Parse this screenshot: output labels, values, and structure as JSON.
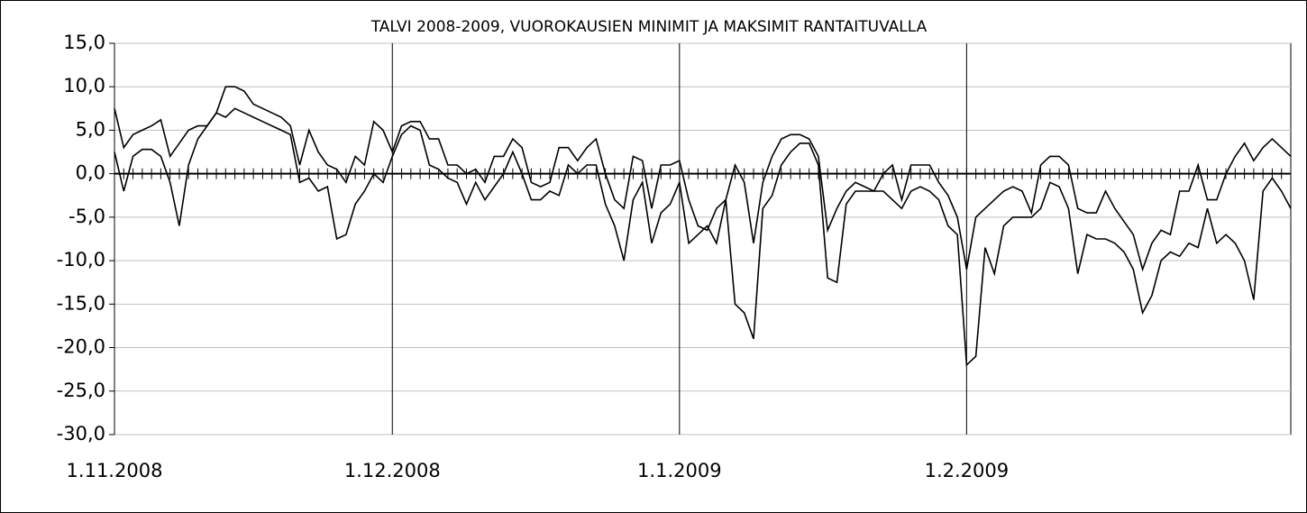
{
  "chart_data": {
    "type": "line",
    "title": "TALVI 2008-2009, VUOROKAUSIEN MINIMIT JA MAKSIMIT RANTAITUVALLA",
    "xlim": [
      0,
      127
    ],
    "xticks": [
      {
        "value": 0,
        "label": "1.11.2008"
      },
      {
        "value": 30,
        "label": "1.12.2008"
      },
      {
        "value": 61,
        "label": "1.1.2009"
      },
      {
        "value": 92,
        "label": "1.2.2009"
      }
    ],
    "ylim": [
      -30,
      15
    ],
    "yticks": [
      {
        "value": 15,
        "label": "15,0"
      },
      {
        "value": 10,
        "label": "10,0"
      },
      {
        "value": 5,
        "label": "5,0"
      },
      {
        "value": 0,
        "label": "0,0"
      },
      {
        "value": -5,
        "label": "-5,0"
      },
      {
        "value": -10,
        "label": "-10,0"
      },
      {
        "value": -15,
        "label": "-15,0"
      },
      {
        "value": -20,
        "label": "-20,0"
      },
      {
        "value": -25,
        "label": "-25,0"
      },
      {
        "value": -30,
        "label": "-30,0"
      }
    ],
    "grid": true,
    "series": [
      {
        "color": "#000000",
        "values": [
          7.5,
          3,
          4.5,
          5,
          5.5,
          6.2,
          2,
          3.5,
          5,
          5.5,
          5.5,
          7,
          10,
          10,
          9.5,
          8,
          7.5,
          7,
          6.5,
          5.5,
          1,
          5,
          2.5,
          1,
          0.5,
          -1,
          2,
          1,
          6,
          5,
          2.5,
          5.5,
          6,
          6,
          4,
          4,
          1,
          1,
          0,
          0.5,
          -1,
          2,
          2,
          4,
          3,
          -1,
          -1.5,
          -1,
          3,
          3,
          1.5,
          3,
          4,
          0,
          -3,
          -4,
          2,
          1.5,
          -4,
          1,
          1,
          1.5,
          -3,
          -6,
          -6.5,
          -4,
          -3,
          1,
          -1,
          -8,
          -1,
          2,
          4,
          4.5,
          4.5,
          4,
          2,
          -6.5,
          -4,
          -2,
          -1,
          -1.5,
          -2,
          0,
          1,
          -3,
          1,
          1,
          1,
          -1,
          -2.5,
          -5,
          -11,
          -5,
          -4,
          -3,
          -2,
          -1.5,
          -2,
          -4.5,
          1,
          2,
          2,
          1,
          -4,
          -4.5,
          -4.5,
          -2,
          -4,
          -5.5,
          -7,
          -11,
          -8,
          -6.5,
          -7,
          -2,
          -2,
          1,
          -3,
          -3,
          0,
          2,
          3.5,
          1.5,
          3,
          4,
          3,
          2
        ]
      },
      {
        "color": "#000000",
        "values": [
          2.5,
          -2,
          2,
          2.8,
          2.8,
          2,
          -1,
          -6,
          1,
          4,
          5.5,
          7,
          6.5,
          7.5,
          7,
          6.5,
          6,
          5.5,
          5,
          4.5,
          -1,
          -0.5,
          -2,
          -1.5,
          -7.5,
          -7,
          -3.5,
          -2,
          0,
          -1,
          2,
          4.5,
          5.5,
          5,
          1,
          0.5,
          -0.5,
          -1,
          -3.5,
          -1,
          -3,
          -1.5,
          0,
          2.5,
          0,
          -3,
          -3,
          -2,
          -2.5,
          1,
          0,
          1,
          1,
          -3.5,
          -6,
          -10,
          -3,
          -1,
          -8,
          -4.5,
          -3.5,
          -1,
          -8,
          -7,
          -6,
          -8,
          -3,
          -15,
          -16,
          -19,
          -4,
          -2.5,
          1,
          2.5,
          3.5,
          3.5,
          1,
          -12,
          -12.5,
          -3.5,
          -2,
          -2,
          -2,
          -2,
          -3,
          -4,
          -2,
          -1.5,
          -2,
          -3,
          -6,
          -7,
          -22,
          -21,
          -8.5,
          -11.5,
          -6,
          -5,
          -5,
          -5,
          -4,
          -1,
          -1.5,
          -4,
          -11.5,
          -7,
          -7.5,
          -7.5,
          -8,
          -9,
          -11,
          -16,
          -14,
          -10,
          -9,
          -9.5,
          -8,
          -8.5,
          -4,
          -8,
          -7,
          -8,
          -10,
          -14.5,
          -2,
          -0.5,
          -2,
          -4
        ]
      }
    ]
  }
}
